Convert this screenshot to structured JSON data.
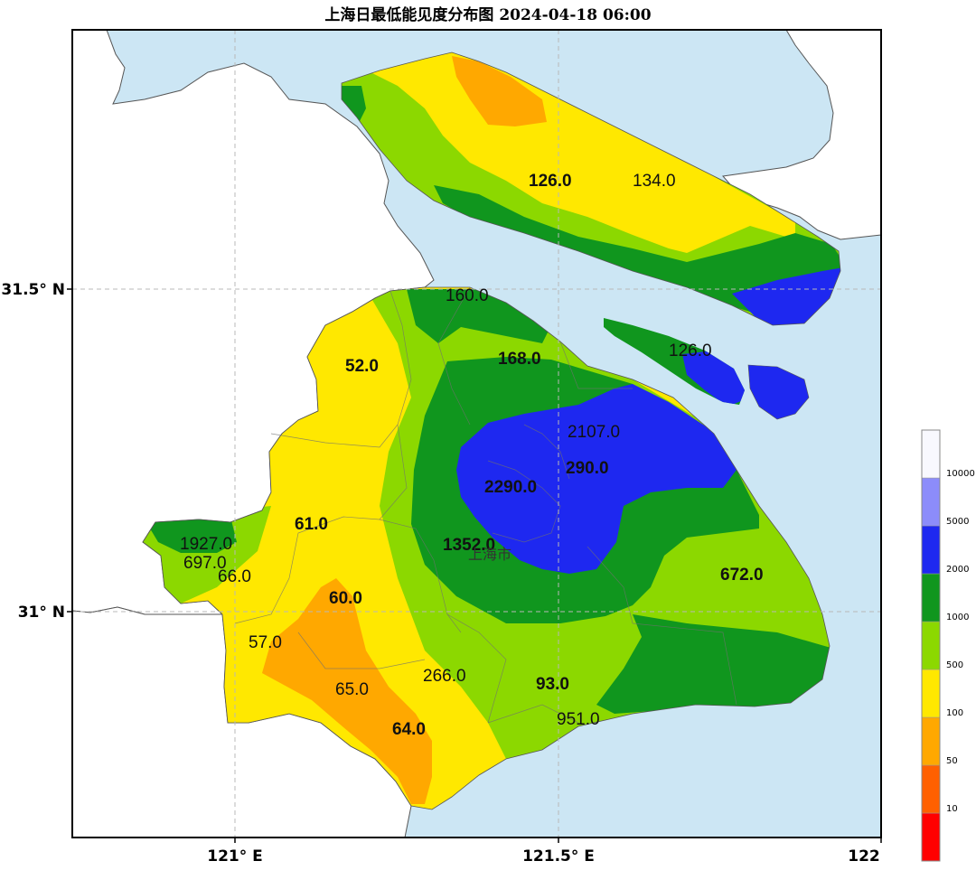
{
  "title": "上海日最低能见度分布图 2024-04-18 06:00",
  "axes": {
    "x_ticks": [
      "121° E",
      "121.5° E",
      "122"
    ],
    "y_ticks": [
      "31.5° N",
      "31° N"
    ]
  },
  "city_label": "上海市",
  "station_values": [
    {
      "text": "126.0",
      "bold": true
    },
    {
      "text": "134.0",
      "bold": false
    },
    {
      "text": "160.0",
      "bold": false
    },
    {
      "text": "126.0",
      "bold": false
    },
    {
      "text": "52.0",
      "bold": true
    },
    {
      "text": "168.0",
      "bold": true
    },
    {
      "text": "2107.0",
      "bold": false
    },
    {
      "text": "290.0",
      "bold": true
    },
    {
      "text": "2290.0",
      "bold": true
    },
    {
      "text": "61.0",
      "bold": true
    },
    {
      "text": "1927.0",
      "bold": false
    },
    {
      "text": "697.0",
      "bold": false
    },
    {
      "text": "66.0",
      "bold": false
    },
    {
      "text": "1352.0",
      "bold": true
    },
    {
      "text": "672.0",
      "bold": true
    },
    {
      "text": "60.0",
      "bold": true
    },
    {
      "text": "57.0",
      "bold": false
    },
    {
      "text": "266.0",
      "bold": false
    },
    {
      "text": "65.0",
      "bold": false
    },
    {
      "text": "93.0",
      "bold": true
    },
    {
      "text": "64.0",
      "bold": true
    },
    {
      "text": "951.0",
      "bold": false
    }
  ],
  "colorbar": {
    "labels": [
      "10000",
      "5000",
      "2000",
      "1000",
      "500",
      "100",
      "50",
      "10"
    ],
    "colors": [
      "#ff0000",
      "#ff6000",
      "#ffa800",
      "#ffe800",
      "#8cd800",
      "#10961e",
      "#1e28f0",
      "#8c8cfa",
      "#f8f8fe"
    ]
  },
  "palette": {
    "water": "#cce6f4",
    "land_outside": "#ffffff",
    "lt100": "#ffa800",
    "lt500": "#ffe800",
    "lt1000": "#8cd800",
    "lt2000": "#10961e",
    "lt5000": "#1e28f0"
  }
}
